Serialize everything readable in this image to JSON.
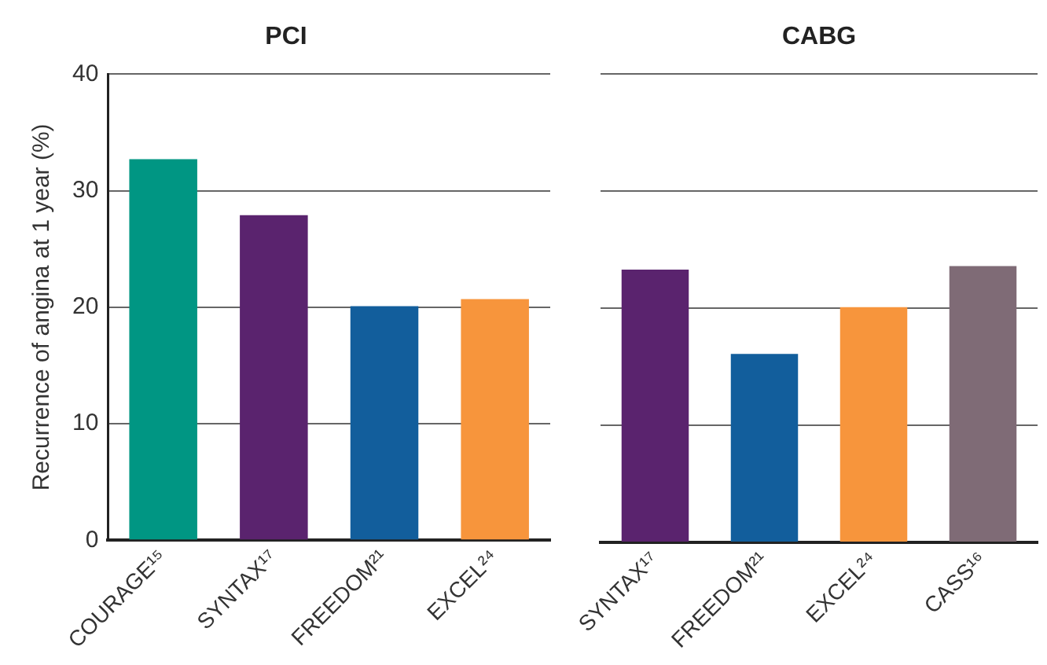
{
  "chart_data": [
    {
      "type": "bar",
      "title": "PCI",
      "ylabel": "Recurrence of angina at 1 year (%)",
      "categories": [
        "COURAGE¹⁵",
        "SYNTAX¹⁷",
        "FREEDOM²¹",
        "EXCEL²⁴"
      ],
      "values": [
        32.7,
        27.9,
        20.1,
        20.7
      ],
      "colors": [
        "#009683",
        "#5a236e",
        "#125e9c",
        "#f7953c"
      ],
      "ylim": [
        0,
        40
      ],
      "yticks": [
        0,
        10,
        20,
        30,
        40
      ],
      "grid": "y",
      "legend": false
    },
    {
      "type": "bar",
      "title": "CABG",
      "categories": [
        "SYNTAX¹⁷",
        "FREEDOM²¹",
        "EXCEL²⁴",
        "CASS¹⁶"
      ],
      "values": [
        23.3,
        16.1,
        20.1,
        23.6
      ],
      "colors": [
        "#5a236e",
        "#125e9c",
        "#f7953c",
        "#7f6b76"
      ],
      "ylim": [
        0,
        40
      ],
      "yticks": [
        0,
        10,
        20,
        30,
        40
      ],
      "grid": "y",
      "legend": false,
      "tick_labels": "x"
    }
  ]
}
